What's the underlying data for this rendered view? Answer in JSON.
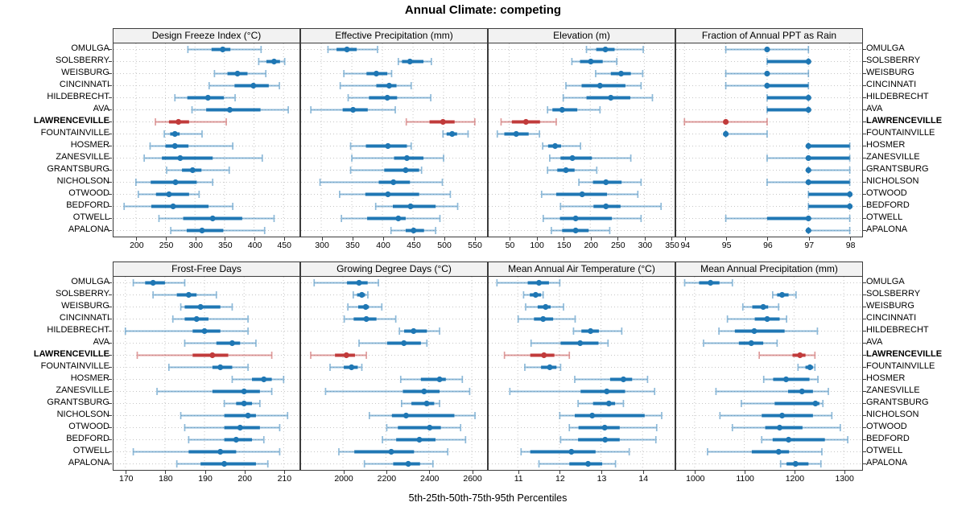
{
  "title": "Annual Climate: competing",
  "caption": "5th-25th-50th-75th-95th Percentiles",
  "highlight_location": "LAWRENCEVILLE",
  "locations": [
    "OMULGA",
    "SOLSBERRY",
    "WEISBURG",
    "CINCINNATI",
    "HILDEBRECHT",
    "AVA",
    "LAWRENCEVILLE",
    "FOUNTAINVILLE",
    "HOSMER",
    "ZANESVILLE",
    "GRANTSBURG",
    "NICHOLSON",
    "OTWOOD",
    "BEDFORD",
    "OTWELL",
    "APALONA"
  ],
  "colors": {
    "series": "#1F77B4",
    "highlight": "#C13B3B",
    "grid": "#c6c6c6",
    "border": "#3c3c3c",
    "strip_bg": "#f2f2f2",
    "background": "#ffffff"
  },
  "chart_data": {
    "type": "percentile-range-dotplot",
    "percentiles": [
      5,
      25,
      50,
      75,
      95
    ],
    "panels": [
      {
        "title": "Design Freeze Index (°C)",
        "row": 0,
        "col": 0,
        "xlim": [
          162,
          477
        ],
        "ticks": [
          200,
          250,
          300,
          350,
          400,
          450
        ],
        "values": [
          [
            288,
            328,
            347,
            360,
            412
          ],
          [
            408,
            421,
            434,
            444,
            452
          ],
          [
            333,
            355,
            372,
            389,
            420
          ],
          [
            324,
            367,
            399,
            425,
            443
          ],
          [
            266,
            287,
            322,
            349,
            368
          ],
          [
            295,
            319,
            359,
            411,
            458
          ],
          [
            233,
            256,
            272,
            290,
            353
          ],
          [
            248,
            258,
            266,
            274,
            312
          ],
          [
            224,
            250,
            266,
            289,
            364
          ],
          [
            214,
            244,
            275,
            330,
            414
          ],
          [
            252,
            278,
            296,
            311,
            358
          ],
          [
            200,
            225,
            267,
            303,
            330
          ],
          [
            204,
            234,
            256,
            290,
            307
          ],
          [
            180,
            226,
            263,
            323,
            364
          ],
          [
            239,
            280,
            330,
            380,
            434
          ],
          [
            259,
            286,
            312,
            348,
            418
          ]
        ]
      },
      {
        "title": "Effective Precipitation (mm)",
        "row": 0,
        "col": 1,
        "xlim": [
          267,
          571
        ],
        "ticks": [
          300,
          350,
          400,
          450,
          500,
          550
        ],
        "values": [
          [
            311,
            325,
            342,
            358,
            392
          ],
          [
            426,
            432,
            445,
            467,
            480
          ],
          [
            337,
            374,
            390,
            408,
            415
          ],
          [
            331,
            390,
            411,
            423,
            447
          ],
          [
            344,
            378,
            408,
            424,
            479
          ],
          [
            283,
            335,
            352,
            376,
            421
          ],
          [
            439,
            477,
            499,
            518,
            551
          ],
          [
            499,
            505,
            514,
            522,
            540
          ],
          [
            348,
            373,
            409,
            440,
            447
          ],
          [
            350,
            419,
            440,
            467,
            500
          ],
          [
            348,
            403,
            438,
            460,
            464
          ],
          [
            298,
            394,
            418,
            445,
            498
          ],
          [
            330,
            372,
            409,
            460,
            511
          ],
          [
            389,
            417,
            446,
            487,
            523
          ],
          [
            333,
            375,
            426,
            438,
            494
          ],
          [
            414,
            438,
            451,
            468,
            487
          ]
        ]
      },
      {
        "title": "Elevation (m)",
        "row": 0,
        "col": 2,
        "xlim": [
          12,
          356
        ],
        "ticks": [
          50,
          100,
          150,
          200,
          250,
          300,
          350
        ],
        "values": [
          [
            193,
            211,
            228,
            245,
            298
          ],
          [
            166,
            181,
            201,
            223,
            249
          ],
          [
            210,
            238,
            257,
            275,
            297
          ],
          [
            155,
            184,
            218,
            265,
            294
          ],
          [
            150,
            193,
            238,
            274,
            315
          ],
          [
            121,
            130,
            148,
            176,
            218
          ],
          [
            35,
            55,
            81,
            107,
            137
          ],
          [
            28,
            41,
            63,
            86,
            106
          ],
          [
            112,
            122,
            135,
            146,
            182
          ],
          [
            125,
            145,
            167,
            203,
            275
          ],
          [
            121,
            139,
            155,
            171,
            212
          ],
          [
            179,
            205,
            229,
            258,
            294
          ],
          [
            110,
            137,
            185,
            231,
            288
          ],
          [
            145,
            206,
            229,
            256,
            331
          ],
          [
            113,
            144,
            173,
            240,
            294
          ],
          [
            128,
            148,
            173,
            197,
            236
          ]
        ]
      },
      {
        "title": "Fraction of Annual PPT as Rain",
        "row": 0,
        "col": 3,
        "xlim": [
          93.8,
          98.3
        ],
        "ticks": [
          94,
          95,
          96,
          97,
          98
        ],
        "values": [
          [
            95,
            96,
            96,
            96,
            97
          ],
          [
            96,
            96,
            97,
            97,
            97
          ],
          [
            95,
            96,
            96,
            96,
            97
          ],
          [
            95,
            96,
            96,
            97,
            97
          ],
          [
            96,
            96,
            97,
            97,
            97
          ],
          [
            96,
            96,
            97,
            97,
            97
          ],
          [
            94,
            95,
            95,
            95,
            96
          ],
          [
            95,
            95,
            95,
            95,
            96
          ],
          [
            97,
            97,
            97,
            98,
            98
          ],
          [
            96,
            97,
            97,
            98,
            98
          ],
          [
            97,
            97,
            97,
            97,
            98
          ],
          [
            96,
            97,
            97,
            98,
            98
          ],
          [
            97,
            97,
            98,
            98,
            98
          ],
          [
            97,
            97,
            98,
            98,
            98
          ],
          [
            95,
            96,
            97,
            97,
            98
          ],
          [
            97,
            97,
            97,
            97,
            98
          ]
        ]
      },
      {
        "title": "Frost-Free Days",
        "row": 1,
        "col": 0,
        "xlim": [
          167,
          214
        ],
        "ticks": [
          170,
          180,
          190,
          200,
          210
        ],
        "values": [
          [
            172,
            175,
            177,
            180,
            185
          ],
          [
            177,
            183,
            186,
            188,
            193
          ],
          [
            184,
            185,
            189,
            194,
            197
          ],
          [
            182,
            185,
            188,
            191,
            201
          ],
          [
            170,
            187,
            190,
            194,
            201
          ],
          [
            185,
            193,
            197,
            199,
            203
          ],
          [
            173,
            187,
            192,
            196,
            207
          ],
          [
            181,
            192,
            194,
            197,
            201
          ],
          [
            197,
            202,
            205,
            207,
            210
          ],
          [
            178,
            192,
            200,
            204,
            207
          ],
          [
            195,
            198,
            200,
            202,
            204
          ],
          [
            184,
            195,
            201,
            203,
            211
          ],
          [
            185,
            195,
            199,
            204,
            209
          ],
          [
            186,
            195,
            198,
            202,
            205
          ],
          [
            172,
            186,
            194,
            198,
            209
          ],
          [
            183,
            189,
            195,
            203,
            206
          ]
        ]
      },
      {
        "title": "Growing Degree Days (°C)",
        "row": 1,
        "col": 1,
        "xlim": [
          1805,
          2671
        ],
        "ticks": [
          2000,
          2200,
          2400,
          2600
        ],
        "values": [
          [
            1866,
            2019,
            2075,
            2115,
            2165
          ],
          [
            2048,
            2066,
            2088,
            2103,
            2116
          ],
          [
            2023,
            2071,
            2106,
            2121,
            2181
          ],
          [
            2006,
            2050,
            2109,
            2156,
            2246
          ],
          [
            2263,
            2285,
            2329,
            2391,
            2450
          ],
          [
            2075,
            2206,
            2284,
            2363,
            2391
          ],
          [
            1850,
            1963,
            2016,
            2056,
            2109
          ],
          [
            1940,
            2004,
            2040,
            2069,
            2088
          ],
          [
            2269,
            2363,
            2450,
            2479,
            2556
          ],
          [
            1919,
            2279,
            2378,
            2450,
            2590
          ],
          [
            2273,
            2319,
            2390,
            2425,
            2450
          ],
          [
            2123,
            2228,
            2294,
            2519,
            2615
          ],
          [
            2204,
            2256,
            2404,
            2456,
            2548
          ],
          [
            2184,
            2248,
            2356,
            2431,
            2571
          ],
          [
            1981,
            2053,
            2225,
            2331,
            2488
          ],
          [
            2100,
            2234,
            2304,
            2359,
            2419
          ]
        ]
      },
      {
        "title": "Mean Annual Air Temperature (°C)",
        "row": 1,
        "col": 2,
        "xlim": [
          10.3,
          14.77
        ],
        "ticks": [
          11,
          12,
          13,
          14
        ],
        "values": [
          [
            10.5,
            11.24,
            11.51,
            11.75,
            12.01
          ],
          [
            11.14,
            11.29,
            11.43,
            11.56,
            11.61
          ],
          [
            11.19,
            11.48,
            11.67,
            11.79,
            12.1
          ],
          [
            11.01,
            11.39,
            11.61,
            11.85,
            12.38
          ],
          [
            12.34,
            12.53,
            12.75,
            12.95,
            13.5
          ],
          [
            11.32,
            12.03,
            12.5,
            12.94,
            13.17
          ],
          [
            10.68,
            11.3,
            11.63,
            11.88,
            12.24
          ],
          [
            11.17,
            11.56,
            11.77,
            11.93,
            12.03
          ],
          [
            12.37,
            13.22,
            13.54,
            13.75,
            14.12
          ],
          [
            10.81,
            12.51,
            13.14,
            13.58,
            14.29
          ],
          [
            12.45,
            12.81,
            13.19,
            13.34,
            13.54
          ],
          [
            12.01,
            12.37,
            12.79,
            14.05,
            14.46
          ],
          [
            12.24,
            12.46,
            13.09,
            13.45,
            14.34
          ],
          [
            12.03,
            12.45,
            13.1,
            13.45,
            14.32
          ],
          [
            11.08,
            11.3,
            12.29,
            12.87,
            13.68
          ],
          [
            11.51,
            12.24,
            12.69,
            13.03,
            13.35
          ]
        ]
      },
      {
        "title": "Mean Annual Precipitation (mm)",
        "row": 1,
        "col": 3,
        "xlim": [
          963,
          1337
        ],
        "ticks": [
          1000,
          1100,
          1200,
          1300
        ],
        "values": [
          [
            980,
            1009,
            1032,
            1050,
            1076
          ],
          [
            1157,
            1166,
            1176,
            1189,
            1204
          ],
          [
            1097,
            1116,
            1138,
            1148,
            1169
          ],
          [
            1066,
            1121,
            1146,
            1171,
            1185
          ],
          [
            1049,
            1081,
            1120,
            1181,
            1247
          ],
          [
            1018,
            1089,
            1114,
            1138,
            1166
          ],
          [
            1130,
            1197,
            1212,
            1223,
            1242
          ],
          [
            1208,
            1223,
            1232,
            1238,
            1242
          ],
          [
            1139,
            1158,
            1184,
            1231,
            1248
          ],
          [
            1043,
            1188,
            1216,
            1238,
            1269
          ],
          [
            1094,
            1161,
            1243,
            1251,
            1258
          ],
          [
            1051,
            1135,
            1176,
            1238,
            1276
          ],
          [
            1076,
            1142,
            1171,
            1217,
            1293
          ],
          [
            1135,
            1157,
            1189,
            1262,
            1308
          ],
          [
            1026,
            1115,
            1169,
            1190,
            1256
          ],
          [
            1173,
            1185,
            1203,
            1229,
            1254
          ]
        ]
      }
    ]
  }
}
